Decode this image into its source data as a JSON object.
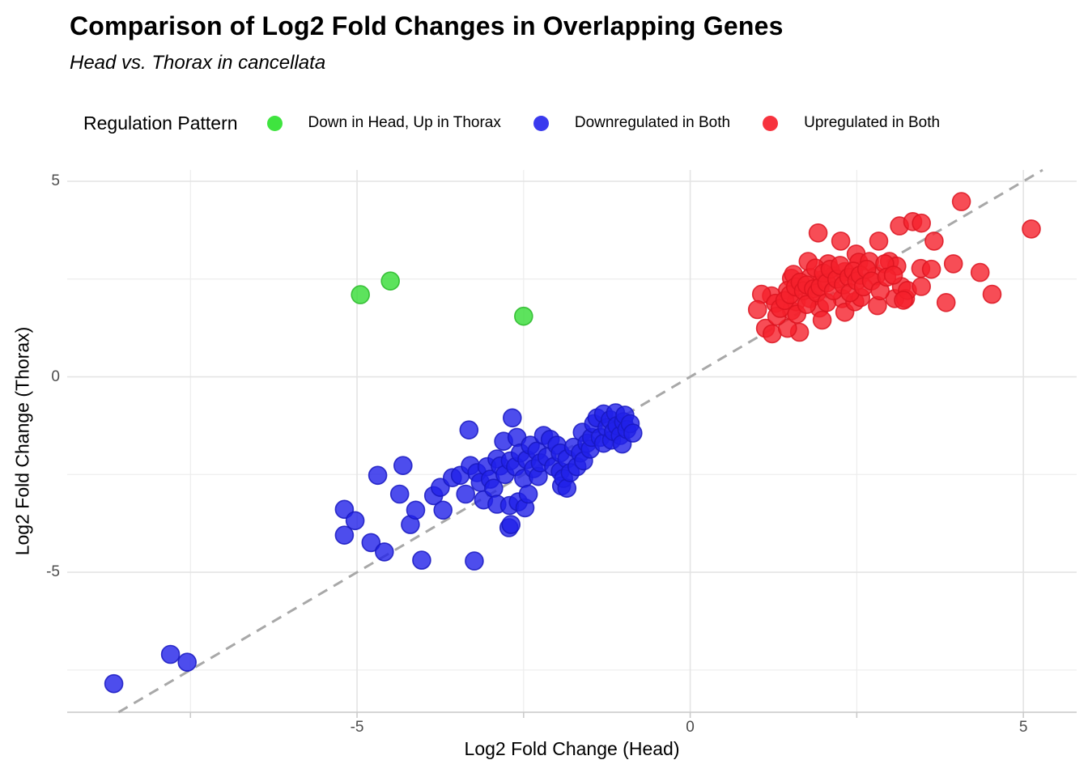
{
  "header": {
    "title": "Comparison of Log2 Fold Changes in Overlapping Genes",
    "subtitle": "Head vs. Thorax in cancellata"
  },
  "legend": {
    "title": "Regulation Pattern",
    "items": [
      {
        "label": "Down in Head, Up in Thorax",
        "color": "#3fe43f"
      },
      {
        "label": "Downregulated in Both",
        "color": "#3a3aee"
      },
      {
        "label": "Upregulated in Both",
        "color": "#f7333e"
      }
    ]
  },
  "chart_data": {
    "type": "scatter",
    "title": "Comparison of Log2 Fold Changes in Overlapping Genes",
    "subtitle": "Head vs. Thorax in cancellata",
    "xlabel": "Log2 Fold Change (Head)",
    "ylabel": "Log2 Fold Change (Thorax)",
    "xlim": [
      -9.35,
      5.8
    ],
    "ylim": [
      -8.58,
      5.29
    ],
    "x_ticks": [
      -5,
      0,
      5
    ],
    "y_ticks": [
      -5,
      0,
      5
    ],
    "x_minor_ticks": [
      -7.5,
      -2.5,
      2.5
    ],
    "y_minor_ticks": [
      -7.5,
      -2.5,
      2.5
    ],
    "grid": true,
    "legend_position": "top",
    "reference_line": {
      "type": "identity y=x",
      "style": "dashed",
      "color": "#a8a8a8"
    },
    "colors": {
      "grid_major": "#e4e4e4",
      "grid_minor": "#ededed",
      "axis": "#c9c9c9",
      "tick_text": "#4d4d4d"
    },
    "series": [
      {
        "name": "Down in Head, Up in Thorax",
        "fill": "#35dc35",
        "stroke": "#28b828",
        "points": [
          [
            -4.95,
            2.1
          ],
          [
            -4.5,
            2.45
          ],
          [
            -2.5,
            1.55
          ]
        ]
      },
      {
        "name": "Downregulated in Both",
        "fill": "#2020e8",
        "stroke": "#1818c0",
        "points": [
          [
            -8.65,
            -7.85
          ],
          [
            -7.8,
            -7.1
          ],
          [
            -7.55,
            -7.3
          ],
          [
            -5.19,
            -3.39
          ],
          [
            -5.03,
            -3.68
          ],
          [
            -5.19,
            -4.05
          ],
          [
            -4.79,
            -4.24
          ],
          [
            -4.59,
            -4.48
          ],
          [
            -4.69,
            -2.52
          ],
          [
            -4.31,
            -2.27
          ],
          [
            -4.36,
            -3.0
          ],
          [
            -4.2,
            -3.78
          ],
          [
            -4.12,
            -3.41
          ],
          [
            -4.03,
            -4.69
          ],
          [
            -3.85,
            -3.04
          ],
          [
            -3.75,
            -2.83
          ],
          [
            -3.71,
            -3.41
          ],
          [
            -3.57,
            -2.58
          ],
          [
            -3.45,
            -2.52
          ],
          [
            -3.37,
            -3.0
          ],
          [
            -3.3,
            -2.27
          ],
          [
            -3.24,
            -4.71
          ],
          [
            -3.32,
            -1.36
          ],
          [
            -3.2,
            -2.45
          ],
          [
            -3.15,
            -2.7
          ],
          [
            -3.1,
            -3.15
          ],
          [
            -3.05,
            -2.3
          ],
          [
            -3.0,
            -2.62
          ],
          [
            -2.95,
            -2.85
          ],
          [
            -2.9,
            -3.26
          ],
          [
            -2.9,
            -2.1
          ],
          [
            -2.85,
            -2.28
          ],
          [
            -2.8,
            -1.65
          ],
          [
            -2.78,
            -2.5
          ],
          [
            -2.72,
            -3.86
          ],
          [
            -2.71,
            -3.29
          ],
          [
            -2.7,
            -2.15
          ],
          [
            -2.69,
            -3.78
          ],
          [
            -2.67,
            -1.05
          ],
          [
            -2.62,
            -2.3
          ],
          [
            -2.6,
            -1.55
          ],
          [
            -2.58,
            -3.2
          ],
          [
            -2.55,
            -1.95
          ],
          [
            -2.5,
            -2.6
          ],
          [
            -2.48,
            -3.35
          ],
          [
            -2.45,
            -2.12
          ],
          [
            -2.43,
            -3.0
          ],
          [
            -2.4,
            -1.75
          ],
          [
            -2.35,
            -2.35
          ],
          [
            -2.3,
            -1.9
          ],
          [
            -2.28,
            -2.55
          ],
          [
            -2.25,
            -2.2
          ],
          [
            -2.2,
            -1.5
          ],
          [
            -2.15,
            -2.05
          ],
          [
            -2.1,
            -1.6
          ],
          [
            -2.05,
            -2.3
          ],
          [
            -2.0,
            -1.75
          ],
          [
            -1.95,
            -2.42
          ],
          [
            -1.95,
            -1.95
          ],
          [
            -1.93,
            -2.79
          ],
          [
            -1.9,
            -2.6
          ],
          [
            -1.85,
            -2.85
          ],
          [
            -1.85,
            -2.1
          ],
          [
            -1.8,
            -2.45
          ],
          [
            -1.75,
            -1.8
          ],
          [
            -1.7,
            -2.3
          ],
          [
            -1.65,
            -1.95
          ],
          [
            -1.62,
            -1.42
          ],
          [
            -1.6,
            -2.15
          ],
          [
            -1.55,
            -1.7
          ],
          [
            -1.5,
            -1.85
          ],
          [
            -1.48,
            -1.55
          ],
          [
            -1.45,
            -1.2
          ],
          [
            -1.4,
            -1.05
          ],
          [
            -1.35,
            -1.55
          ],
          [
            -1.3,
            -0.95
          ],
          [
            -1.3,
            -1.7
          ],
          [
            -1.25,
            -1.3
          ],
          [
            -1.2,
            -1.1
          ],
          [
            -1.18,
            -1.62
          ],
          [
            -1.15,
            -1.4
          ],
          [
            -1.12,
            -0.92
          ],
          [
            -1.1,
            -1.25
          ],
          [
            -1.05,
            -1.5
          ],
          [
            -1.02,
            -1.72
          ],
          [
            -1.0,
            -1.15
          ],
          [
            -0.98,
            -0.98
          ],
          [
            -0.95,
            -1.35
          ],
          [
            -0.9,
            -1.2
          ],
          [
            -0.86,
            -1.44
          ]
        ]
      },
      {
        "name": "Upregulated in Both",
        "fill": "#f5202c",
        "stroke": "#dc1420",
        "points": [
          [
            1.92,
            3.68
          ],
          [
            2.26,
            3.47
          ],
          [
            2.83,
            3.47
          ],
          [
            3.14,
            3.86
          ],
          [
            1.77,
            2.95
          ],
          [
            2.07,
            2.89
          ],
          [
            2.49,
            3.14
          ],
          [
            2.53,
            2.93
          ],
          [
            2.69,
            2.95
          ],
          [
            2.99,
            2.95
          ],
          [
            3.1,
            2.83
          ],
          [
            2.32,
            2.69
          ],
          [
            2.14,
            2.58
          ],
          [
            1.98,
            2.48
          ],
          [
            1.8,
            2.54
          ],
          [
            1.52,
            2.52
          ],
          [
            1.46,
            2.21
          ],
          [
            1.22,
            2.07
          ],
          [
            1.07,
            2.11
          ],
          [
            1.01,
            1.72
          ],
          [
            1.13,
            1.24
          ],
          [
            1.23,
            1.1
          ],
          [
            1.52,
            1.69
          ],
          [
            1.59,
            1.92
          ],
          [
            1.8,
            2.0
          ],
          [
            1.94,
            1.76
          ],
          [
            1.98,
            1.45
          ],
          [
            1.64,
            1.14
          ],
          [
            1.46,
            1.24
          ],
          [
            2.28,
            2.0
          ],
          [
            2.32,
            1.65
          ],
          [
            2.47,
            1.92
          ],
          [
            2.56,
            2.03
          ],
          [
            2.81,
            1.82
          ],
          [
            3.07,
            2.0
          ],
          [
            3.17,
            2.31
          ],
          [
            3.23,
            2.0
          ],
          [
            2.79,
            2.58
          ],
          [
            2.92,
            2.89
          ],
          [
            4.07,
            4.48
          ],
          [
            3.34,
            3.97
          ],
          [
            3.47,
            3.93
          ],
          [
            3.66,
            3.47
          ],
          [
            5.12,
            3.78
          ],
          [
            3.95,
            2.89
          ],
          [
            3.46,
            2.77
          ],
          [
            3.62,
            2.75
          ],
          [
            4.35,
            2.67
          ],
          [
            4.53,
            2.11
          ],
          [
            3.84,
            1.9
          ],
          [
            3.26,
            2.21
          ],
          [
            3.47,
            2.31
          ],
          [
            3.2,
            1.96
          ],
          [
            1.28,
            1.88
          ],
          [
            1.3,
            1.55
          ],
          [
            1.35,
            1.75
          ],
          [
            1.42,
            1.95
          ],
          [
            1.5,
            2.1
          ],
          [
            1.55,
            2.62
          ],
          [
            1.58,
            2.3
          ],
          [
            1.6,
            1.6
          ],
          [
            1.65,
            2.42
          ],
          [
            1.7,
            2.2
          ],
          [
            1.75,
            2.35
          ],
          [
            1.75,
            1.85
          ],
          [
            1.85,
            2.25
          ],
          [
            1.88,
            2.78
          ],
          [
            1.9,
            2.15
          ],
          [
            1.95,
            2.3
          ],
          [
            2.0,
            2.65
          ],
          [
            2.05,
            2.4
          ],
          [
            2.05,
            1.9
          ],
          [
            2.1,
            2.75
          ],
          [
            2.15,
            2.2
          ],
          [
            2.2,
            2.5
          ],
          [
            2.25,
            2.85
          ],
          [
            2.3,
            2.35
          ],
          [
            2.38,
            2.55
          ],
          [
            2.4,
            2.15
          ],
          [
            2.45,
            2.7
          ],
          [
            2.5,
            2.45
          ],
          [
            2.55,
            2.6
          ],
          [
            2.6,
            2.3
          ],
          [
            2.65,
            2.75
          ],
          [
            2.72,
            2.45
          ],
          [
            2.85,
            2.2
          ],
          [
            2.95,
            2.55
          ],
          [
            3.05,
            2.6
          ]
        ]
      }
    ]
  }
}
